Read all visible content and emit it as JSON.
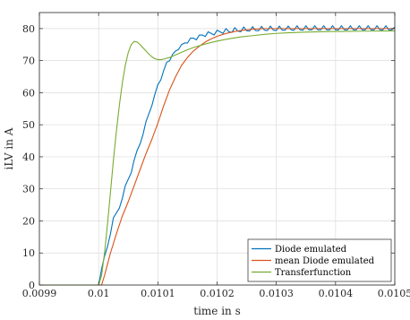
{
  "chart_data": {
    "type": "line",
    "title": "",
    "xlabel": "time in s",
    "ylabel": "iLV in A",
    "xlim": [
      0.0099,
      0.0105
    ],
    "ylim": [
      0,
      85
    ],
    "grid": true,
    "legend_position": "bottom-right",
    "x_ticks": [
      0.0099,
      0.01,
      0.0101,
      0.0102,
      0.0103,
      0.0104,
      0.0105
    ],
    "x_tick_labels": [
      "0.0099",
      "0.01",
      "0.0101",
      "0.0102",
      "0.0103",
      "0.0104",
      "0.0105"
    ],
    "y_ticks": [
      0,
      10,
      20,
      30,
      40,
      50,
      60,
      70,
      80
    ],
    "y_tick_labels": [
      "0",
      "10",
      "20",
      "30",
      "40",
      "50",
      "60",
      "70",
      "80"
    ],
    "series": [
      {
        "name": "Diode emulated",
        "color": "#0072BD",
        "points": [
          [
            0.0099,
            0
          ],
          [
            0.01,
            0
          ],
          [
            0.010005,
            5
          ],
          [
            0.01001,
            9
          ],
          [
            0.010015,
            12
          ],
          [
            0.01002,
            16
          ],
          [
            0.010025,
            21
          ],
          [
            0.01003,
            22.5
          ],
          [
            0.010035,
            24
          ],
          [
            0.01004,
            27
          ],
          [
            0.010045,
            31
          ],
          [
            0.01005,
            33
          ],
          [
            0.010055,
            35
          ],
          [
            0.01006,
            39
          ],
          [
            0.010065,
            42
          ],
          [
            0.01007,
            44
          ],
          [
            0.010075,
            47
          ],
          [
            0.01008,
            51
          ],
          [
            0.010085,
            53.5
          ],
          [
            0.01009,
            56
          ],
          [
            0.010095,
            59.5
          ],
          [
            0.0101,
            62.5
          ],
          [
            0.010105,
            64
          ],
          [
            0.01011,
            67
          ],
          [
            0.010115,
            69.5
          ],
          [
            0.01012,
            70
          ],
          [
            0.010125,
            72
          ],
          [
            0.01013,
            73
          ],
          [
            0.010135,
            73.5
          ],
          [
            0.01014,
            75
          ],
          [
            0.010145,
            75.5
          ],
          [
            0.01015,
            75.5
          ],
          [
            0.010155,
            77
          ],
          [
            0.01016,
            77
          ],
          [
            0.010165,
            76.5
          ],
          [
            0.01017,
            78
          ],
          [
            0.010175,
            78
          ],
          [
            0.01018,
            77.5
          ],
          [
            0.010185,
            79
          ],
          [
            0.01019,
            78.5
          ],
          [
            0.010195,
            78
          ],
          [
            0.0102,
            79.5
          ],
          [
            0.010205,
            79
          ],
          [
            0.01021,
            78.5
          ],
          [
            0.010215,
            80
          ],
          [
            0.01022,
            79
          ],
          [
            0.010225,
            78.8
          ],
          [
            0.01023,
            80.3
          ],
          [
            0.010235,
            79.2
          ],
          [
            0.01024,
            79
          ],
          [
            0.010245,
            80.5
          ],
          [
            0.01025,
            79.3
          ],
          [
            0.010255,
            79.2
          ],
          [
            0.01026,
            80.6
          ],
          [
            0.010265,
            79.4
          ],
          [
            0.01027,
            79.3
          ],
          [
            0.010275,
            80.7
          ],
          [
            0.01028,
            79.5
          ],
          [
            0.010285,
            79.4
          ],
          [
            0.01029,
            80.8
          ],
          [
            0.010295,
            79.5
          ],
          [
            0.0103,
            79.4
          ],
          [
            0.010305,
            80.8
          ],
          [
            0.01031,
            79.5
          ],
          [
            0.010315,
            79.5
          ],
          [
            0.01032,
            80.8
          ],
          [
            0.010325,
            79.6
          ],
          [
            0.01033,
            79.5
          ],
          [
            0.010335,
            80.9
          ],
          [
            0.01034,
            79.6
          ],
          [
            0.010345,
            79.5
          ],
          [
            0.01035,
            80.9
          ],
          [
            0.010355,
            79.6
          ],
          [
            0.01036,
            79.6
          ],
          [
            0.010365,
            80.9
          ],
          [
            0.01037,
            79.6
          ],
          [
            0.010375,
            79.6
          ],
          [
            0.01038,
            80.9
          ],
          [
            0.010385,
            79.6
          ],
          [
            0.01039,
            79.6
          ],
          [
            0.010395,
            80.9
          ],
          [
            0.0104,
            79.6
          ],
          [
            0.010405,
            79.6
          ],
          [
            0.01041,
            80.9
          ],
          [
            0.010415,
            79.6
          ],
          [
            0.01042,
            79.6
          ],
          [
            0.010425,
            80.9
          ],
          [
            0.01043,
            79.6
          ],
          [
            0.010435,
            79.6
          ],
          [
            0.01044,
            80.9
          ],
          [
            0.010445,
            79.6
          ],
          [
            0.01045,
            79.6
          ],
          [
            0.010455,
            80.9
          ],
          [
            0.01046,
            79.6
          ],
          [
            0.010465,
            79.6
          ],
          [
            0.01047,
            80.9
          ],
          [
            0.010475,
            79.6
          ],
          [
            0.01048,
            79.6
          ],
          [
            0.010485,
            80.9
          ],
          [
            0.01049,
            79.6
          ],
          [
            0.010495,
            79.6
          ],
          [
            0.0105,
            80.5
          ]
        ]
      },
      {
        "name": "mean Diode emulated",
        "color": "#D95319",
        "points": [
          [
            0.0099,
            0
          ],
          [
            0.010005,
            0
          ],
          [
            0.01001,
            3
          ],
          [
            0.01002,
            10
          ],
          [
            0.01003,
            16
          ],
          [
            0.01004,
            21.5
          ],
          [
            0.01005,
            26
          ],
          [
            0.01006,
            31
          ],
          [
            0.01007,
            36
          ],
          [
            0.01008,
            41
          ],
          [
            0.01009,
            45.5
          ],
          [
            0.0101,
            50.5
          ],
          [
            0.01011,
            56
          ],
          [
            0.01012,
            61
          ],
          [
            0.01013,
            65
          ],
          [
            0.01014,
            68.5
          ],
          [
            0.01015,
            71
          ],
          [
            0.01016,
            73
          ],
          [
            0.01017,
            74.5
          ],
          [
            0.01018,
            75.8
          ],
          [
            0.01019,
            76.8
          ],
          [
            0.0102,
            77.6
          ],
          [
            0.01021,
            78.2
          ],
          [
            0.01022,
            78.7
          ],
          [
            0.01023,
            79.1
          ],
          [
            0.01024,
            79.4
          ],
          [
            0.01025,
            79.6
          ],
          [
            0.01026,
            79.8
          ],
          [
            0.01028,
            80
          ],
          [
            0.0103,
            80
          ],
          [
            0.01032,
            80
          ],
          [
            0.01035,
            80
          ],
          [
            0.0104,
            80
          ],
          [
            0.0105,
            80
          ]
        ]
      },
      {
        "name": "Transferfunction",
        "color": "#77AC30",
        "points": [
          [
            0.0099,
            0
          ],
          [
            0.01,
            0
          ],
          [
            0.010005,
            3
          ],
          [
            0.01001,
            10
          ],
          [
            0.010015,
            19
          ],
          [
            0.01002,
            29
          ],
          [
            0.010025,
            39
          ],
          [
            0.01003,
            48
          ],
          [
            0.010035,
            56
          ],
          [
            0.01004,
            63
          ],
          [
            0.010045,
            68.5
          ],
          [
            0.01005,
            72.5
          ],
          [
            0.010055,
            75
          ],
          [
            0.01006,
            76
          ],
          [
            0.010065,
            75.8
          ],
          [
            0.01007,
            75
          ],
          [
            0.010075,
            74
          ],
          [
            0.01008,
            73
          ],
          [
            0.010085,
            72
          ],
          [
            0.01009,
            71.2
          ],
          [
            0.010095,
            70.6
          ],
          [
            0.0101,
            70.3
          ],
          [
            0.010105,
            70.3
          ],
          [
            0.01011,
            70.5
          ],
          [
            0.01012,
            71
          ],
          [
            0.01013,
            71.8
          ],
          [
            0.01014,
            72.6
          ],
          [
            0.01015,
            73.4
          ],
          [
            0.01016,
            74.1
          ],
          [
            0.01018,
            75.2
          ],
          [
            0.0102,
            76.1
          ],
          [
            0.01022,
            76.8
          ],
          [
            0.01024,
            77.4
          ],
          [
            0.01026,
            77.8
          ],
          [
            0.01028,
            78.2
          ],
          [
            0.0103,
            78.5
          ],
          [
            0.01032,
            78.7
          ],
          [
            0.01035,
            78.9
          ],
          [
            0.0104,
            79.1
          ],
          [
            0.01045,
            79.2
          ],
          [
            0.0105,
            79.3
          ]
        ]
      }
    ]
  }
}
